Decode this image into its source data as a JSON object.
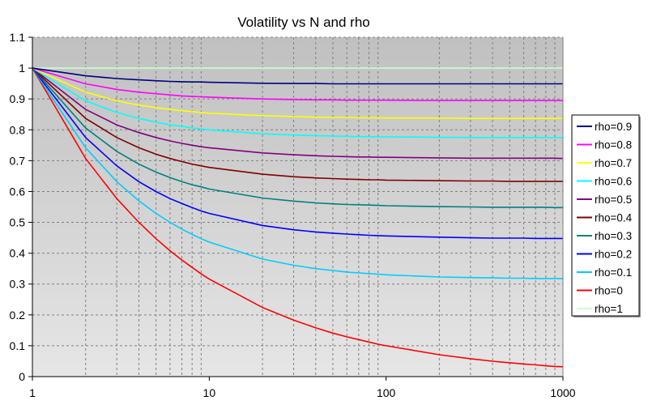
{
  "chart_data": {
    "type": "line",
    "title": "Volatility vs N and rho",
    "xlabel": "",
    "ylabel": "",
    "x_scale": "log",
    "xlim": [
      1,
      1000
    ],
    "ylim": [
      0,
      1.1
    ],
    "x_ticks": [
      "1",
      "10",
      "100",
      "1000"
    ],
    "y_ticks": [
      "0",
      "0.1",
      "0.2",
      "0.3",
      "0.4",
      "0.5",
      "0.6",
      "0.7",
      "0.8",
      "0.9",
      "1",
      "1.1"
    ],
    "grid": true,
    "legend_position": "right",
    "background": [
      "#c0c0c0",
      "#e6e6e6"
    ],
    "x": [
      1,
      2,
      3,
      4,
      5,
      6,
      7,
      8,
      9,
      10,
      20,
      30,
      40,
      50,
      60,
      70,
      80,
      90,
      100,
      200,
      300,
      400,
      500,
      600,
      700,
      800,
      900,
      1000
    ],
    "series": [
      {
        "name": "rho=0.9",
        "color": "#000080",
        "values": [
          1,
          0.975,
          0.966,
          0.962,
          0.959,
          0.957,
          0.956,
          0.955,
          0.955,
          0.954,
          0.951,
          0.95,
          0.95,
          0.949,
          0.949,
          0.949,
          0.949,
          0.949,
          0.949,
          0.949,
          0.949,
          0.949,
          0.949,
          0.949,
          0.949,
          0.949,
          0.949,
          0.949
        ]
      },
      {
        "name": "rho=0.8",
        "color": "#ff00ff",
        "values": [
          1,
          0.949,
          0.931,
          0.922,
          0.917,
          0.913,
          0.91,
          0.908,
          0.907,
          0.906,
          0.9,
          0.898,
          0.897,
          0.897,
          0.896,
          0.896,
          0.896,
          0.896,
          0.896,
          0.895,
          0.895,
          0.895,
          0.895,
          0.895,
          0.895,
          0.895,
          0.895,
          0.895
        ]
      },
      {
        "name": "rho=0.7",
        "color": "#ffff00",
        "values": [
          1,
          0.922,
          0.894,
          0.88,
          0.872,
          0.866,
          0.862,
          0.859,
          0.856,
          0.854,
          0.846,
          0.843,
          0.841,
          0.84,
          0.84,
          0.839,
          0.839,
          0.839,
          0.838,
          0.838,
          0.837,
          0.837,
          0.837,
          0.837,
          0.837,
          0.837,
          0.837,
          0.837
        ]
      },
      {
        "name": "rho=0.6",
        "color": "#00ffff",
        "values": [
          1,
          0.894,
          0.856,
          0.837,
          0.825,
          0.816,
          0.811,
          0.806,
          0.803,
          0.8,
          0.787,
          0.783,
          0.781,
          0.78,
          0.779,
          0.778,
          0.778,
          0.777,
          0.777,
          0.776,
          0.775,
          0.775,
          0.775,
          0.775,
          0.775,
          0.775,
          0.775,
          0.775
        ]
      },
      {
        "name": "rho=0.5",
        "color": "#800080",
        "values": [
          1,
          0.866,
          0.816,
          0.791,
          0.775,
          0.764,
          0.756,
          0.75,
          0.745,
          0.742,
          0.725,
          0.719,
          0.716,
          0.714,
          0.713,
          0.712,
          0.712,
          0.711,
          0.711,
          0.709,
          0.708,
          0.708,
          0.708,
          0.708,
          0.708,
          0.708,
          0.708,
          0.707
        ]
      },
      {
        "name": "rho=0.4",
        "color": "#800000",
        "values": [
          1,
          0.837,
          0.775,
          0.742,
          0.721,
          0.707,
          0.697,
          0.689,
          0.683,
          0.678,
          0.656,
          0.648,
          0.644,
          0.642,
          0.64,
          0.639,
          0.638,
          0.638,
          0.637,
          0.635,
          0.634,
          0.634,
          0.633,
          0.633,
          0.633,
          0.633,
          0.633,
          0.633
        ]
      },
      {
        "name": "rho=0.3",
        "color": "#008080",
        "values": [
          1,
          0.806,
          0.73,
          0.689,
          0.663,
          0.645,
          0.632,
          0.622,
          0.615,
          0.608,
          0.579,
          0.569,
          0.563,
          0.56,
          0.558,
          0.557,
          0.556,
          0.555,
          0.554,
          0.551,
          0.55,
          0.549,
          0.549,
          0.549,
          0.549,
          0.549,
          0.548,
          0.548
        ]
      },
      {
        "name": "rho=0.2",
        "color": "#0000ff",
        "values": [
          1,
          0.775,
          0.683,
          0.632,
          0.6,
          0.577,
          0.561,
          0.548,
          0.537,
          0.529,
          0.49,
          0.476,
          0.469,
          0.465,
          0.462,
          0.46,
          0.458,
          0.457,
          0.456,
          0.452,
          0.45,
          0.449,
          0.449,
          0.449,
          0.448,
          0.448,
          0.448,
          0.448
        ]
      },
      {
        "name": "rho=0.1",
        "color": "#00ccff",
        "values": [
          1,
          0.742,
          0.632,
          0.57,
          0.529,
          0.5,
          0.478,
          0.461,
          0.447,
          0.436,
          0.381,
          0.361,
          0.35,
          0.344,
          0.339,
          0.336,
          0.334,
          0.332,
          0.33,
          0.323,
          0.321,
          0.32,
          0.319,
          0.319,
          0.318,
          0.318,
          0.318,
          0.318
        ]
      },
      {
        "name": "rho=0",
        "color": "#ff0000",
        "values": [
          1,
          0.707,
          0.577,
          0.5,
          0.447,
          0.408,
          0.378,
          0.354,
          0.333,
          0.316,
          0.224,
          0.183,
          0.158,
          0.141,
          0.129,
          0.12,
          0.112,
          0.105,
          0.1,
          0.071,
          0.058,
          0.05,
          0.045,
          0.041,
          0.038,
          0.035,
          0.033,
          0.032
        ]
      },
      {
        "name": "rho=1",
        "color": "#ccffcc",
        "values": [
          1,
          1,
          1,
          1,
          1,
          1,
          1,
          1,
          1,
          1,
          1,
          1,
          1,
          1,
          1,
          1,
          1,
          1,
          1,
          1,
          1,
          1,
          1,
          1,
          1,
          1,
          1,
          1
        ]
      }
    ]
  }
}
